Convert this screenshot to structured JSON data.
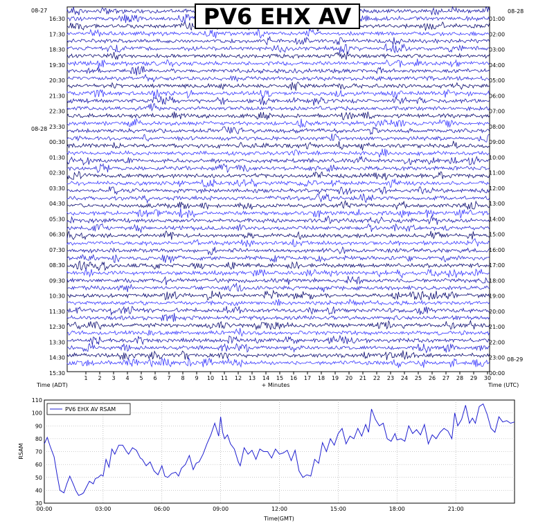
{
  "title": "PV6 EHX AV",
  "chart_data": [
    {
      "type": "helicorder",
      "title": "PV6 EHX AV",
      "xlabel": "+ Minutes",
      "left_axis_label": "Time (ADT)",
      "right_axis_label": "Time (UTC)",
      "x_ticks": [
        1,
        2,
        3,
        4,
        5,
        6,
        7,
        8,
        9,
        10,
        11,
        12,
        13,
        14,
        15,
        16,
        17,
        18,
        19,
        20,
        21,
        22,
        23,
        24,
        25,
        26,
        27,
        28,
        29,
        30
      ],
      "left_date_start": "08-27",
      "left_date_change": "08-28",
      "right_date_start": "08-28",
      "right_date_end": "08-29",
      "left_time_labels": [
        "16:30",
        "17:30",
        "18:30",
        "19:30",
        "20:30",
        "21:30",
        "22:30",
        "23:30",
        "00:30",
        "01:30",
        "02:30",
        "03:30",
        "04:30",
        "05:30",
        "06:30",
        "07:30",
        "08:30",
        "09:30",
        "10:30",
        "11:30",
        "12:30",
        "13:30",
        "14:30",
        "15:30"
      ],
      "right_time_labels": [
        "01:00",
        "02:00",
        "03:00",
        "04:00",
        "05:00",
        "06:00",
        "07:00",
        "08:00",
        "09:00",
        "10:00",
        "11:00",
        "12:00",
        "13:00",
        "14:00",
        "15:00",
        "16:00",
        "17:00",
        "18:00",
        "19:00",
        "20:00",
        "21:00",
        "22:00",
        "23:00",
        "00:00"
      ],
      "trace_colors": [
        "#1a1aa8",
        "#2a2ad6",
        "#0c0c70",
        "#3a3aff"
      ],
      "rows_per_hour": 2
    },
    {
      "type": "line",
      "xlabel": "Time(GMT)",
      "ylabel": "RSAM",
      "x_tick_labels": [
        "00:00",
        "03:00",
        "06:00",
        "09:00",
        "12:00",
        "15:00",
        "18:00",
        "21:00"
      ],
      "x_tick_hours": [
        0,
        3,
        6,
        9,
        12,
        15,
        18,
        21
      ],
      "xlim": [
        0,
        24
      ],
      "ylim": [
        30,
        110
      ],
      "y_ticks": [
        30,
        40,
        50,
        60,
        70,
        80,
        90,
        100,
        110
      ],
      "grid": true,
      "legend": "top-left",
      "series": [
        {
          "name": "PV6 EHX AV RSAM",
          "color": "#1f1fd0",
          "x": [
            0,
            0.15,
            0.3,
            0.5,
            0.65,
            0.8,
            1.0,
            1.15,
            1.3,
            1.5,
            1.6,
            1.75,
            1.9,
            2.0,
            2.1,
            2.3,
            2.5,
            2.6,
            2.75,
            2.9,
            3.0,
            3.15,
            3.3,
            3.45,
            3.6,
            3.8,
            4.0,
            4.2,
            4.3,
            4.5,
            4.7,
            4.9,
            5.0,
            5.2,
            5.4,
            5.6,
            5.8,
            6.0,
            6.15,
            6.3,
            6.5,
            6.7,
            6.85,
            7.0,
            7.2,
            7.4,
            7.6,
            7.75,
            7.9,
            8.1,
            8.3,
            8.5,
            8.7,
            8.9,
            9.0,
            9.1,
            9.2,
            9.35,
            9.5,
            9.7,
            9.9,
            10.0,
            10.2,
            10.4,
            10.6,
            10.8,
            11.0,
            11.2,
            11.4,
            11.6,
            11.8,
            12.0,
            12.2,
            12.4,
            12.6,
            12.8,
            13.0,
            13.2,
            13.4,
            13.6,
            13.8,
            14.0,
            14.2,
            14.4,
            14.6,
            14.8,
            15.0,
            15.2,
            15.4,
            15.6,
            15.8,
            16.0,
            16.2,
            16.4,
            16.55,
            16.7,
            16.9,
            17.1,
            17.3,
            17.5,
            17.7,
            17.9,
            18.0,
            18.2,
            18.4,
            18.6,
            18.8,
            19.0,
            19.2,
            19.4,
            19.6,
            19.8,
            20.0,
            20.2,
            20.4,
            20.6,
            20.8,
            20.95,
            21.1,
            21.3,
            21.5,
            21.7,
            21.85,
            22.0,
            22.2,
            22.4,
            22.6,
            22.8,
            23.0,
            23.2,
            23.4,
            23.6,
            23.8,
            24.0
          ],
          "values": [
            76,
            81,
            74,
            66,
            52,
            40,
            38,
            45,
            51,
            44,
            40,
            36,
            37,
            38,
            41,
            47,
            45,
            49,
            50,
            52,
            51,
            64,
            58,
            72,
            68,
            75,
            75,
            70,
            68,
            73,
            71,
            65,
            64,
            59,
            62,
            55,
            52,
            59,
            51,
            50,
            53,
            54,
            51,
            57,
            60,
            67,
            56,
            61,
            62,
            68,
            76,
            83,
            92,
            82,
            97,
            85,
            80,
            83,
            76,
            72,
            62,
            59,
            73,
            68,
            71,
            64,
            72,
            70,
            70,
            65,
            72,
            68,
            69,
            71,
            63,
            71,
            55,
            50,
            52,
            51,
            64,
            61,
            77,
            70,
            80,
            75,
            84,
            88,
            76,
            82,
            80,
            88,
            82,
            91,
            85,
            103,
            95,
            90,
            92,
            80,
            78,
            84,
            79,
            80,
            78,
            90,
            84,
            87,
            83,
            91,
            76,
            83,
            80,
            85,
            88,
            86,
            80,
            100,
            90,
            95,
            106,
            92,
            96,
            92,
            105,
            107,
            99,
            88,
            85,
            97,
            93,
            94,
            92,
            93
          ]
        }
      ]
    }
  ]
}
